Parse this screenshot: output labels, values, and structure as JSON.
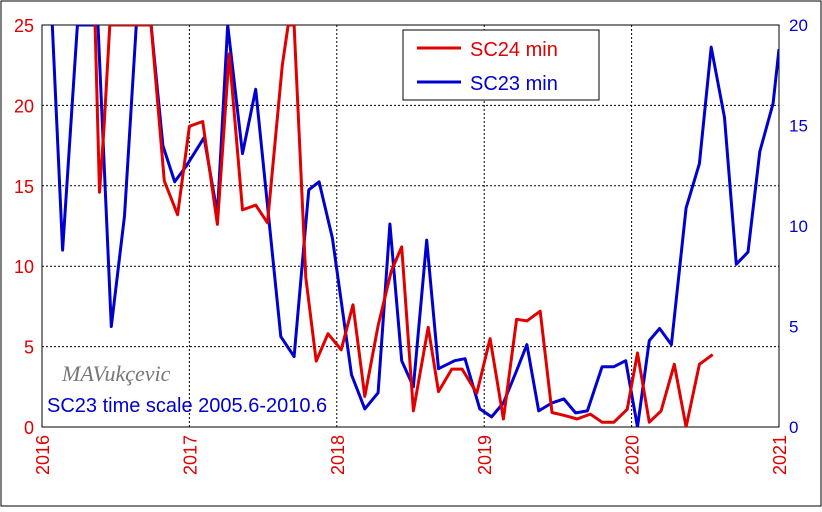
{
  "chart_data": {
    "type": "line",
    "x_axis": {
      "min": 2016,
      "max": 2021,
      "ticks": [
        "2016",
        "2017",
        "2018",
        "2019",
        "2020",
        "2021"
      ],
      "color": "#e00000"
    },
    "y_left": {
      "min": 0,
      "max": 25,
      "ticks": [
        "0",
        "5",
        "10",
        "15",
        "20",
        "25"
      ],
      "color": "#e00000"
    },
    "y_right": {
      "min": 0,
      "max": 20,
      "ticks": [
        "0",
        "5",
        "10",
        "15",
        "20"
      ],
      "color": "#0000d0"
    },
    "grid": true,
    "legend_position": "top-right",
    "annotations": {
      "signature": "MAVukçevic",
      "note": "SC23 time scale 2005.6-2010.6"
    },
    "series": [
      {
        "name": "SC24 min",
        "axis": "left",
        "color": "#e00000",
        "points": [
          [
            2016.36,
            25.0
          ],
          [
            2016.39,
            14.6
          ],
          [
            2016.42,
            18.5
          ],
          [
            2016.46,
            25.0
          ],
          [
            2016.74,
            25.0
          ],
          [
            2016.83,
            15.3
          ],
          [
            2016.92,
            13.2
          ],
          [
            2017.0,
            18.7
          ],
          [
            2017.09,
            19.0
          ],
          [
            2017.19,
            12.6
          ],
          [
            2017.27,
            23.2
          ],
          [
            2017.36,
            13.5
          ],
          [
            2017.45,
            13.8
          ],
          [
            2017.53,
            12.7
          ],
          [
            2017.63,
            22.5
          ],
          [
            2017.67,
            25.0
          ],
          [
            2017.71,
            25.0
          ],
          [
            2017.79,
            9.3
          ],
          [
            2017.86,
            4.1
          ],
          [
            2017.94,
            5.8
          ],
          [
            2018.03,
            4.8
          ],
          [
            2018.11,
            7.6
          ],
          [
            2018.19,
            1.9
          ],
          [
            2018.28,
            6.3
          ],
          [
            2018.37,
            9.7
          ],
          [
            2018.44,
            11.2
          ],
          [
            2018.52,
            1.0
          ],
          [
            2018.62,
            6.2
          ],
          [
            2018.69,
            2.2
          ],
          [
            2018.78,
            3.6
          ],
          [
            2018.85,
            3.6
          ],
          [
            2018.95,
            2.1
          ],
          [
            2019.04,
            5.5
          ],
          [
            2019.13,
            0.5
          ],
          [
            2019.22,
            6.7
          ],
          [
            2019.29,
            6.6
          ],
          [
            2019.38,
            7.2
          ],
          [
            2019.46,
            0.9
          ],
          [
            2019.55,
            0.7
          ],
          [
            2019.63,
            0.5
          ],
          [
            2019.72,
            0.8
          ],
          [
            2019.8,
            0.3
          ],
          [
            2019.88,
            0.3
          ],
          [
            2019.97,
            1.1
          ],
          [
            2020.04,
            4.6
          ],
          [
            2020.12,
            0.3
          ],
          [
            2020.2,
            1.0
          ],
          [
            2020.29,
            3.9
          ],
          [
            2020.37,
            0.0
          ],
          [
            2020.46,
            3.9
          ],
          [
            2020.55,
            4.5
          ]
        ]
      },
      {
        "name": "SC23 min",
        "axis": "right",
        "color": "#0000d0",
        "points": [
          [
            2016.07,
            20.0
          ],
          [
            2016.14,
            8.8
          ],
          [
            2016.24,
            20.0
          ],
          [
            2016.38,
            20.0
          ],
          [
            2016.47,
            5.0
          ],
          [
            2016.56,
            10.5
          ],
          [
            2016.64,
            20.0
          ],
          [
            2016.74,
            20.0
          ],
          [
            2016.82,
            14.0
          ],
          [
            2016.9,
            12.2
          ],
          [
            2016.98,
            13.0
          ],
          [
            2017.1,
            14.4
          ],
          [
            2017.19,
            10.6
          ],
          [
            2017.26,
            20.0
          ],
          [
            2017.36,
            13.6
          ],
          [
            2017.45,
            16.8
          ],
          [
            2017.62,
            4.5
          ],
          [
            2017.71,
            3.5
          ],
          [
            2017.81,
            11.8
          ],
          [
            2017.88,
            12.2
          ],
          [
            2017.97,
            9.4
          ],
          [
            2018.1,
            2.6
          ],
          [
            2018.19,
            0.9
          ],
          [
            2018.28,
            1.7
          ],
          [
            2018.36,
            10.1
          ],
          [
            2018.44,
            3.3
          ],
          [
            2018.52,
            2.0
          ],
          [
            2018.61,
            9.3
          ],
          [
            2018.69,
            2.9
          ],
          [
            2018.8,
            3.3
          ],
          [
            2018.87,
            3.4
          ],
          [
            2018.97,
            0.9
          ],
          [
            2019.05,
            0.5
          ],
          [
            2019.13,
            1.2
          ],
          [
            2019.22,
            2.8
          ],
          [
            2019.29,
            4.1
          ],
          [
            2019.37,
            0.8
          ],
          [
            2019.46,
            1.2
          ],
          [
            2019.54,
            1.4
          ],
          [
            2019.62,
            0.7
          ],
          [
            2019.7,
            0.8
          ],
          [
            2019.8,
            3.0
          ],
          [
            2019.88,
            3.0
          ],
          [
            2019.96,
            3.3
          ],
          [
            2020.04,
            0.0
          ],
          [
            2020.12,
            4.3
          ],
          [
            2020.19,
            4.9
          ],
          [
            2020.27,
            4.1
          ],
          [
            2020.37,
            10.9
          ],
          [
            2020.46,
            13.1
          ],
          [
            2020.54,
            18.9
          ],
          [
            2020.63,
            15.4
          ],
          [
            2020.71,
            8.1
          ],
          [
            2020.79,
            8.7
          ],
          [
            2020.87,
            13.7
          ],
          [
            2020.96,
            16.1
          ],
          [
            2021.0,
            18.8
          ]
        ]
      }
    ]
  }
}
